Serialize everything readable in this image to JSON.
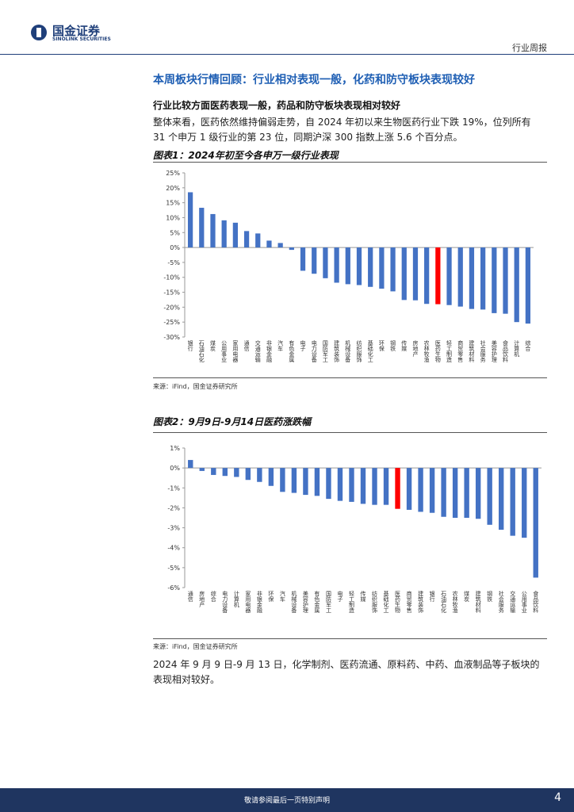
{
  "header": {
    "brand": "国金证券",
    "brand_en": "SINOLINK SECURITIES",
    "report_type": "行业周报"
  },
  "section_title": "本周板块行情回顾：行业相对表现一般，化药和防守板块表现较好",
  "subtitle": "行业比较方面医药表现一般，药品和防守板块表现相对较好",
  "paragraph1": [
    "整体来看，医药依然维持偏弱走势，自 2024 年初以来生物医药行业下跌 19%，位列所有",
    "31 个申万 1 级行业的第 23 位，同期沪深 300 指数上涨 5.6 个百分点。"
  ],
  "chart_data": [
    {
      "type": "bar",
      "title": "图表1：2024年初至今各申万一级行业表现",
      "source": "来源：iFind，国金证券研究所",
      "categories": [
        "银行",
        "石油石化",
        "煤炭",
        "公用事业",
        "家用电器",
        "通信",
        "交通运输",
        "非银金融",
        "汽车",
        "有色金属",
        "电子",
        "电力设备",
        "国防军工",
        "建筑装饰",
        "机械设备",
        "纺织服饰",
        "基础化工",
        "环保",
        "钢铁",
        "传媒",
        "房地产",
        "农林牧渔",
        "医药生物",
        "轻工制造",
        "商贸零售",
        "建筑材料",
        "社会服务",
        "美容护理",
        "食品饮料",
        "计算机",
        "综合"
      ],
      "values": [
        18.5,
        13.3,
        11.2,
        9.1,
        8.3,
        5.5,
        4.7,
        2.3,
        1.5,
        -0.8,
        -7.8,
        -8.8,
        -10.3,
        -11.8,
        -12.3,
        -12.6,
        -13.2,
        -13.8,
        -14.7,
        -17.6,
        -17.7,
        -18.9,
        -19,
        -19.3,
        -19.8,
        -20.6,
        -20.8,
        -22,
        -22.2,
        -25,
        -25.5
      ],
      "colors": [
        "#4472c4",
        "#4472c4",
        "#4472c4",
        "#4472c4",
        "#4472c4",
        "#4472c4",
        "#4472c4",
        "#4472c4",
        "#4472c4",
        "#4472c4",
        "#4472c4",
        "#4472c4",
        "#4472c4",
        "#4472c4",
        "#4472c4",
        "#4472c4",
        "#4472c4",
        "#4472c4",
        "#4472c4",
        "#4472c4",
        "#4472c4",
        "#4472c4",
        "#ff0000",
        "#4472c4",
        "#4472c4",
        "#4472c4",
        "#4472c4",
        "#4472c4",
        "#4472c4",
        "#4472c4",
        "#4472c4"
      ],
      "ylim": [
        -30,
        25
      ],
      "yticks": [
        {
          "value": -30,
          "label": "-30%"
        },
        {
          "value": -25,
          "label": "-25%"
        },
        {
          "value": -20,
          "label": "-20%"
        },
        {
          "value": -15,
          "label": "-15%"
        },
        {
          "value": -10,
          "label": "-10%"
        },
        {
          "value": -5,
          "label": "-5%"
        },
        {
          "value": 0,
          "label": "0%"
        },
        {
          "value": 5,
          "label": "5%"
        },
        {
          "value": 10,
          "label": "10%"
        },
        {
          "value": 15,
          "label": "15%"
        },
        {
          "value": 20,
          "label": "20%"
        },
        {
          "value": 25,
          "label": "25%"
        }
      ]
    },
    {
      "type": "bar",
      "title": "图表2：9月9日-9月14日医药涨跌幅",
      "source": "来源：iFind，国金证券研究所",
      "categories": [
        "通信",
        "房地产",
        "综合",
        "电力设备",
        "计算机",
        "家用电器",
        "非银金融",
        "环保",
        "汽车",
        "机械设备",
        "美容护理",
        "有色金属",
        "国防军工",
        "电子",
        "轻工制造",
        "传媒",
        "纺织服饰",
        "基础化工",
        "医药生物",
        "商贸零售",
        "建筑装饰",
        "银行",
        "石油石化",
        "农林牧渔",
        "煤炭",
        "建筑材料",
        "钢铁",
        "社会服务",
        "交通运输",
        "公用事业",
        "食品饮料"
      ],
      "values": [
        0.4,
        -0.15,
        -0.35,
        -0.4,
        -0.45,
        -0.6,
        -0.7,
        -0.9,
        -1.2,
        -1.25,
        -1.35,
        -1.4,
        -1.55,
        -1.65,
        -1.7,
        -1.8,
        -1.85,
        -1.85,
        -2.05,
        -2.1,
        -2.2,
        -2.25,
        -2.45,
        -2.5,
        -2.5,
        -2.55,
        -2.85,
        -3.1,
        -3.4,
        -3.5,
        -5.5
      ],
      "colors": [
        "#4472c4",
        "#4472c4",
        "#4472c4",
        "#4472c4",
        "#4472c4",
        "#4472c4",
        "#4472c4",
        "#4472c4",
        "#4472c4",
        "#4472c4",
        "#4472c4",
        "#4472c4",
        "#4472c4",
        "#4472c4",
        "#4472c4",
        "#4472c4",
        "#4472c4",
        "#4472c4",
        "#ff0000",
        "#4472c4",
        "#4472c4",
        "#4472c4",
        "#4472c4",
        "#4472c4",
        "#4472c4",
        "#4472c4",
        "#4472c4",
        "#4472c4",
        "#4472c4",
        "#4472c4",
        "#4472c4"
      ],
      "ylim": [
        -6,
        1
      ],
      "yticks": [
        {
          "value": -6,
          "label": "-6%"
        },
        {
          "value": -5,
          "label": "-5%"
        },
        {
          "value": -4,
          "label": "-4%"
        },
        {
          "value": -3,
          "label": "-3%"
        },
        {
          "value": -2,
          "label": "-2%"
        },
        {
          "value": -1,
          "label": "-1%"
        },
        {
          "value": 0,
          "label": "0%"
        },
        {
          "value": 1,
          "label": "1%"
        }
      ]
    }
  ],
  "paragraph2": [
    "2024 年 9 月 9 日-9 月 13 日，化学制剂、医药流通、原料药、中药、血液制品等子板块的",
    "表现相对较好。"
  ],
  "footer": {
    "notice": "敬请参阅最后一页特别声明",
    "page": "4"
  }
}
